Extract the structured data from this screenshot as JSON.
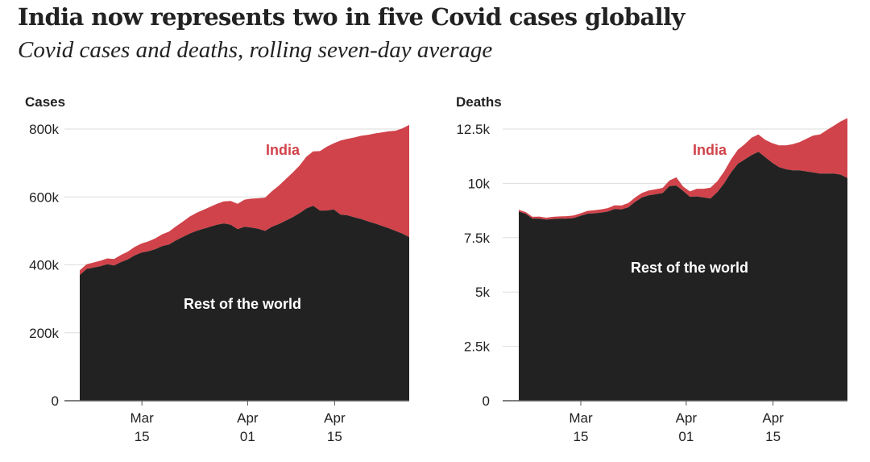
{
  "title": "India now represents two in five Covid cases globally",
  "subtitle": "Covid cases and deaths, rolling seven-day average",
  "colors": {
    "india": "#d0434a",
    "rest": "#222222",
    "grid": "#dddddd",
    "axis": "#555555",
    "label_india": "#d0434a",
    "label_rest": "#ffffff"
  },
  "chart_data": [
    {
      "type": "area",
      "stacked": true,
      "panel_label": "Cases",
      "x_start": "2021-03-05",
      "x_end": "2021-04-27",
      "xticks": [
        {
          "date": "2021-03-15",
          "month": "Mar",
          "day": "15"
        },
        {
          "date": "2021-04-01",
          "month": "Apr",
          "day": "01"
        },
        {
          "date": "2021-04-15",
          "month": "Apr",
          "day": "15"
        }
      ],
      "ylim": [
        0,
        800000
      ],
      "yticks": [
        {
          "value": 0,
          "label": "0"
        },
        {
          "value": 200000,
          "label": "200k"
        },
        {
          "value": 400000,
          "label": "400k"
        },
        {
          "value": 600000,
          "label": "600k"
        },
        {
          "value": 800000,
          "label": "800k"
        }
      ],
      "grid": true,
      "series": [
        {
          "name": "Rest of the world",
          "color": "#222222",
          "values": [
            370000,
            388000,
            392000,
            396000,
            402000,
            398000,
            408000,
            416000,
            428000,
            436000,
            440000,
            446000,
            455000,
            460000,
            472000,
            482000,
            492000,
            500000,
            506000,
            512000,
            518000,
            522000,
            518000,
            505000,
            512000,
            510000,
            506000,
            500000,
            512000,
            520000,
            530000,
            540000,
            552000,
            566000,
            574000,
            560000,
            560000,
            563000,
            548000,
            546000,
            540000,
            535000,
            528000,
            522000,
            515000,
            508000,
            500000,
            492000,
            482000
          ]
        },
        {
          "name": "India",
          "color": "#d0434a",
          "values": [
            14000,
            14000,
            15000,
            16000,
            17000,
            19000,
            21000,
            23000,
            25000,
            27000,
            29000,
            32000,
            35000,
            38000,
            41000,
            45000,
            50000,
            53000,
            56000,
            59000,
            62000,
            65000,
            70000,
            75000,
            80000,
            85000,
            90000,
            98000,
            105000,
            113000,
            122000,
            131000,
            140000,
            152000,
            160000,
            175000,
            188000,
            195000,
            218000,
            225000,
            235000,
            245000,
            255000,
            265000,
            275000,
            285000,
            295000,
            310000,
            330000
          ]
        }
      ],
      "annotations": [
        {
          "text": "India",
          "series": "India"
        },
        {
          "text": "Rest of the world",
          "series": "Rest of the world"
        }
      ]
    },
    {
      "type": "area",
      "stacked": true,
      "panel_label": "Deaths",
      "x_start": "2021-03-05",
      "x_end": "2021-04-27",
      "xticks": [
        {
          "date": "2021-03-15",
          "month": "Mar",
          "day": "15"
        },
        {
          "date": "2021-04-01",
          "month": "Apr",
          "day": "01"
        },
        {
          "date": "2021-04-15",
          "month": "Apr",
          "day": "15"
        }
      ],
      "ylim": [
        0,
        12500
      ],
      "yticks": [
        {
          "value": 0,
          "label": "0"
        },
        {
          "value": 2500,
          "label": "2.5k"
        },
        {
          "value": 5000,
          "label": "5k"
        },
        {
          "value": 7500,
          "label": "7.5k"
        },
        {
          "value": 10000,
          "label": "10k"
        },
        {
          "value": 12500,
          "label": "12.5k"
        }
      ],
      "grid": true,
      "series": [
        {
          "name": "Rest of the world",
          "color": "#222222",
          "values": [
            8700,
            8600,
            8380,
            8380,
            8330,
            8360,
            8380,
            8380,
            8400,
            8500,
            8600,
            8620,
            8650,
            8700,
            8820,
            8800,
            8900,
            9150,
            9350,
            9450,
            9500,
            9550,
            9870,
            9900,
            9650,
            9380,
            9400,
            9350,
            9300,
            9600,
            10000,
            10500,
            10900,
            11100,
            11300,
            11450,
            11200,
            10950,
            10750,
            10650,
            10600,
            10600,
            10550,
            10500,
            10450,
            10450,
            10450,
            10400,
            10250
          ]
        },
        {
          "name": "India",
          "color": "#d0434a",
          "values": [
            80,
            80,
            80,
            90,
            90,
            100,
            100,
            110,
            120,
            120,
            130,
            140,
            150,
            160,
            170,
            180,
            190,
            200,
            210,
            220,
            230,
            240,
            260,
            380,
            200,
            250,
            350,
            400,
            500,
            500,
            550,
            600,
            650,
            700,
            800,
            800,
            800,
            900,
            1000,
            1100,
            1200,
            1300,
            1500,
            1700,
            1800,
            2000,
            2200,
            2450,
            2750
          ]
        }
      ],
      "annotations": [
        {
          "text": "India",
          "series": "India"
        },
        {
          "text": "Rest of the world",
          "series": "Rest of the world"
        }
      ]
    }
  ]
}
